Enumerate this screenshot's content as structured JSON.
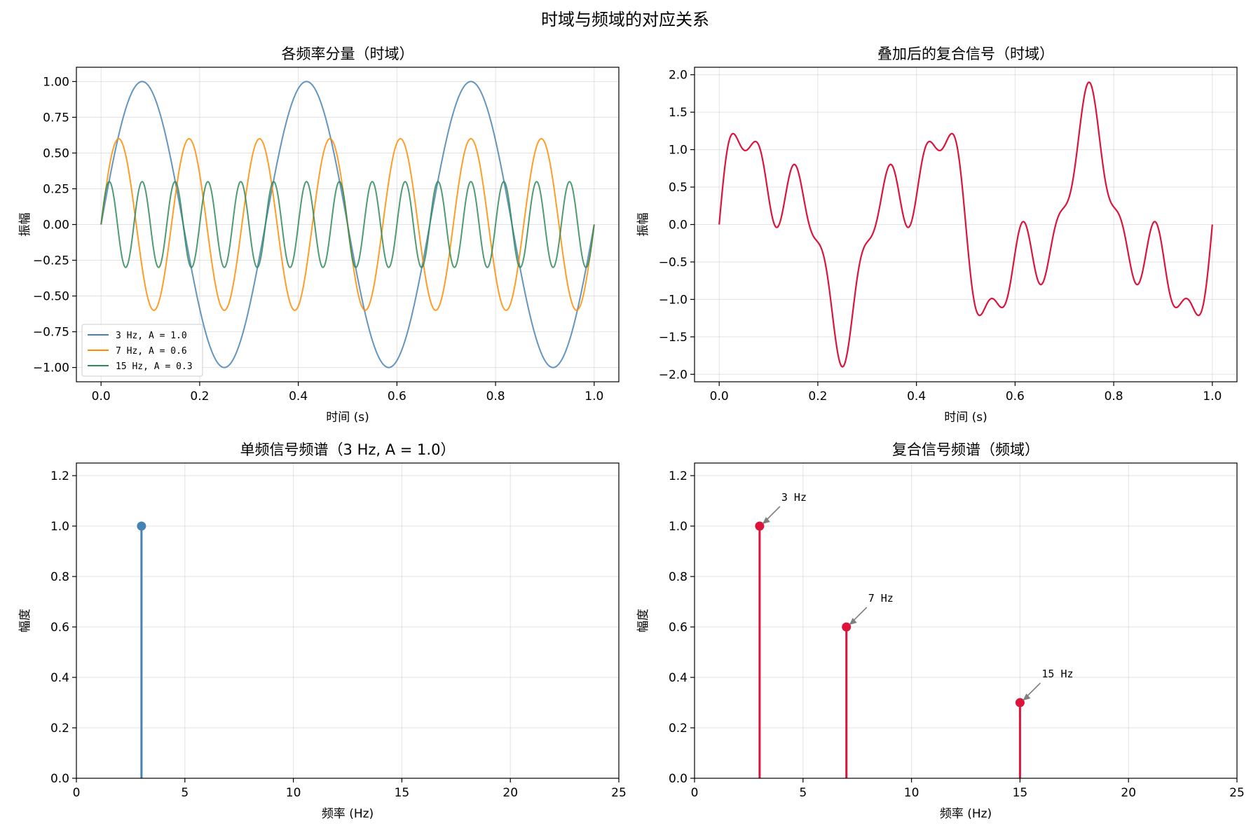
{
  "figure": {
    "suptitle": "时域与频域的对应关系"
  },
  "chart_data": [
    {
      "type": "line",
      "title": "各频率分量（时域）",
      "xlabel": "时间 (s)",
      "ylabel": "振幅",
      "xlim": [
        -0.05,
        1.05
      ],
      "ylim": [
        -1.1,
        1.1
      ],
      "xticks": [
        0.0,
        0.2,
        0.4,
        0.6,
        0.8,
        1.0
      ],
      "xtick_labels": [
        "0.0",
        "0.2",
        "0.4",
        "0.6",
        "0.8",
        "1.0"
      ],
      "yticks": [
        1.0,
        0.75,
        0.5,
        0.25,
        0.0,
        -0.25,
        -0.5,
        -0.75,
        -1.0
      ],
      "ytick_labels": [
        "1.00",
        "0.75",
        "0.50",
        "0.25",
        "0.00",
        "−0.25",
        "−0.50",
        "−0.75",
        "−1.00"
      ],
      "grid": true,
      "legend_position": "lower-left",
      "series": [
        {
          "name": "3 Hz, A = 1.0",
          "frequency": 3,
          "amplitude": 1.0,
          "color": "#4682b4"
        },
        {
          "name": "7 Hz, A = 0.6",
          "frequency": 7,
          "amplitude": 0.6,
          "color": "#ff8c00"
        },
        {
          "name": "15 Hz, A = 0.3",
          "frequency": 15,
          "amplitude": 0.3,
          "color": "#2e8b57"
        }
      ],
      "t_range": [
        0,
        1
      ]
    },
    {
      "type": "line",
      "title": "叠加后的复合信号（时域）",
      "xlabel": "时间 (s)",
      "ylabel": "振幅",
      "xlim": [
        -0.05,
        1.05
      ],
      "ylim": [
        -2.1,
        2.1
      ],
      "xticks": [
        0.0,
        0.2,
        0.4,
        0.6,
        0.8,
        1.0
      ],
      "xtick_labels": [
        "0.0",
        "0.2",
        "0.4",
        "0.6",
        "0.8",
        "1.0"
      ],
      "yticks": [
        2.0,
        1.5,
        1.0,
        0.5,
        0.0,
        -0.5,
        -1.0,
        -1.5,
        -2.0
      ],
      "ytick_labels": [
        "2.0",
        "1.5",
        "1.0",
        "0.5",
        "0.0",
        "−0.5",
        "−1.0",
        "−1.5",
        "−2.0"
      ],
      "grid": true,
      "series": [
        {
          "components": [
            [
              3,
              1.0
            ],
            [
              7,
              0.6
            ],
            [
              15,
              0.3
            ]
          ],
          "color": "#dc143c"
        }
      ],
      "t_range": [
        0,
        1
      ]
    },
    {
      "type": "bar",
      "title": "单频信号频谱（3 Hz, A = 1.0）",
      "xlabel": "频率 (Hz)",
      "ylabel": "幅度",
      "xlim": [
        0,
        25
      ],
      "ylim": [
        0,
        1.25
      ],
      "xticks": [
        0,
        5,
        10,
        15,
        20,
        25
      ],
      "xtick_labels": [
        "0",
        "5",
        "10",
        "15",
        "20",
        "25"
      ],
      "yticks": [
        0.0,
        0.2,
        0.4,
        0.6,
        0.8,
        1.0,
        1.2
      ],
      "ytick_labels": [
        "0.0",
        "0.2",
        "0.4",
        "0.6",
        "0.8",
        "1.0",
        "1.2"
      ],
      "grid": true,
      "x": [
        3
      ],
      "values": [
        1.0
      ],
      "color": "#4682b4"
    },
    {
      "type": "bar",
      "title": "复合信号频谱（频域）",
      "xlabel": "频率 (Hz)",
      "ylabel": "幅度",
      "xlim": [
        0,
        25
      ],
      "ylim": [
        0,
        1.25
      ],
      "xticks": [
        0,
        5,
        10,
        15,
        20,
        25
      ],
      "xtick_labels": [
        "0",
        "5",
        "10",
        "15",
        "20",
        "25"
      ],
      "yticks": [
        0.0,
        0.2,
        0.4,
        0.6,
        0.8,
        1.0,
        1.2
      ],
      "ytick_labels": [
        "0.0",
        "0.2",
        "0.4",
        "0.6",
        "0.8",
        "1.0",
        "1.2"
      ],
      "grid": true,
      "x": [
        3,
        7,
        15
      ],
      "values": [
        1.0,
        0.6,
        0.3
      ],
      "annotations": [
        "3 Hz",
        "7 Hz",
        "15 Hz"
      ],
      "color": "#dc143c"
    }
  ]
}
